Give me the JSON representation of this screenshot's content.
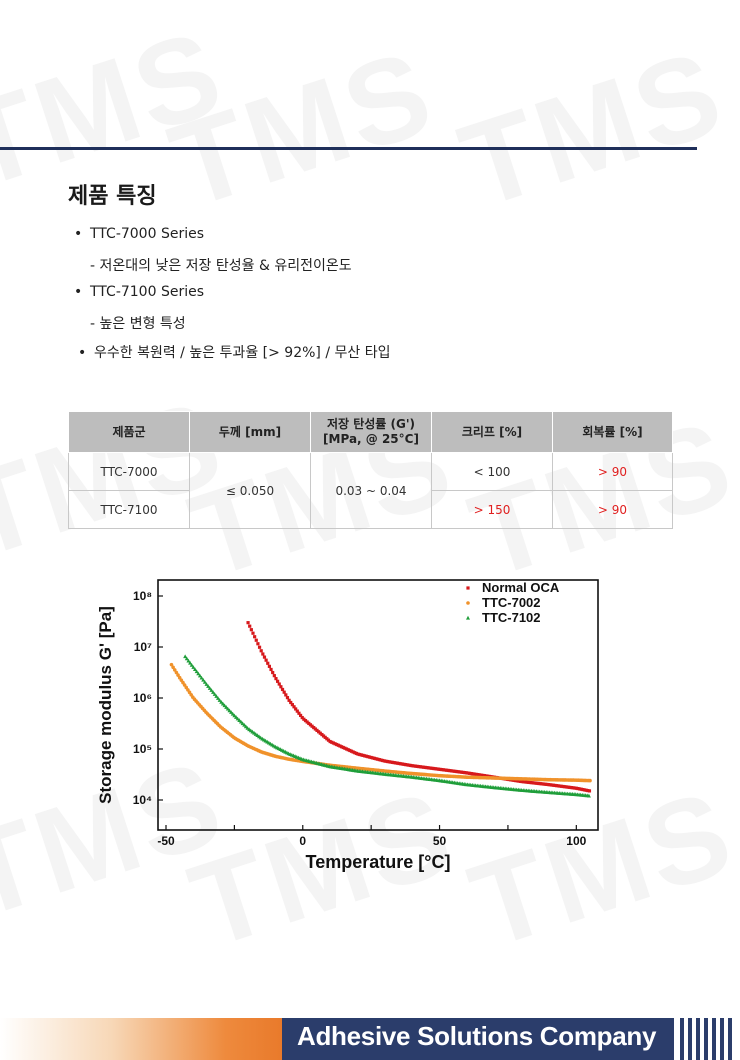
{
  "watermark": "TMS",
  "heading": "제품 특징",
  "features": [
    {
      "bullet": "•",
      "text": "TTC-7000 Series"
    },
    {
      "bullet": "",
      "text": "- 저온대의 낮은 저장 탄성율 & 유리전이온도"
    },
    {
      "bullet": "•",
      "text": "TTC-7100 Series"
    },
    {
      "bullet": "",
      "text": "- 높은 변형 특성"
    },
    {
      "bullet": "•",
      "text": "우수한 복원력 / 높은 투과율 [> 92%] / 무산 타입"
    }
  ],
  "table": {
    "headers": [
      "제품군",
      "두께 [mm]",
      "저장 탄성률 (G')",
      "[MPa, @ 25°C]",
      "크리프 [%]",
      "회복률 [%]"
    ],
    "rows": [
      {
        "product": "TTC-7000",
        "creep": "< 100",
        "recovery": "> 90"
      },
      {
        "product": "TTC-7100",
        "creep": "> 150",
        "recovery": "> 90"
      }
    ],
    "thickness": "≤ 0.050",
    "modulus": "0.03 ~ 0.04"
  },
  "chart_data": {
    "type": "scatter",
    "xlabel": "Temperature [°C]",
    "ylabel": "Storage modulus G' [Pa]",
    "xlim": [
      -50,
      105
    ],
    "ylim": [
      10000,
      100000000
    ],
    "yscale": "log",
    "xticks": [
      "-50",
      "0",
      "50",
      "100"
    ],
    "yticks": [
      "10⁴",
      "10⁵",
      "10⁶",
      "10⁷",
      "10⁸"
    ],
    "legend_position": "top-right",
    "series": [
      {
        "name": "Normal OCA",
        "color": "#d7191c",
        "marker": "square",
        "x": [
          -20,
          -15,
          -10,
          -5,
          0,
          10,
          20,
          30,
          40,
          50,
          60,
          70,
          80,
          90,
          100,
          105
        ],
        "y": [
          30000000,
          8000000,
          2500000,
          900000,
          400000,
          140000,
          80000,
          58000,
          47000,
          40000,
          34000,
          28000,
          23000,
          20000,
          17000,
          15000
        ]
      },
      {
        "name": "TTC-7002",
        "color": "#f0922b",
        "marker": "circle",
        "x": [
          -48,
          -45,
          -40,
          -35,
          -30,
          -25,
          -20,
          -15,
          -10,
          -5,
          0,
          10,
          20,
          30,
          40,
          50,
          60,
          70,
          80,
          90,
          100,
          105
        ],
        "y": [
          4500000,
          2500000,
          1000000,
          500000,
          270000,
          165000,
          115000,
          87000,
          72000,
          63000,
          57000,
          48000,
          42000,
          37000,
          33000,
          30000,
          28000,
          27000,
          26000,
          25000,
          24500,
          24000
        ]
      },
      {
        "name": "TTC-7102",
        "color": "#1f9e3a",
        "marker": "triangle",
        "x": [
          -43,
          -40,
          -35,
          -30,
          -25,
          -20,
          -15,
          -10,
          -5,
          0,
          10,
          20,
          30,
          40,
          50,
          60,
          70,
          80,
          90,
          100,
          105
        ],
        "y": [
          6500000,
          4000000,
          1800000,
          850000,
          450000,
          250000,
          160000,
          110000,
          80000,
          62000,
          45000,
          37000,
          32000,
          28000,
          24000,
          20000,
          17500,
          15500,
          14000,
          12800,
          12000
        ]
      }
    ]
  },
  "footer": {
    "text": "Adhesive Solutions Company"
  }
}
